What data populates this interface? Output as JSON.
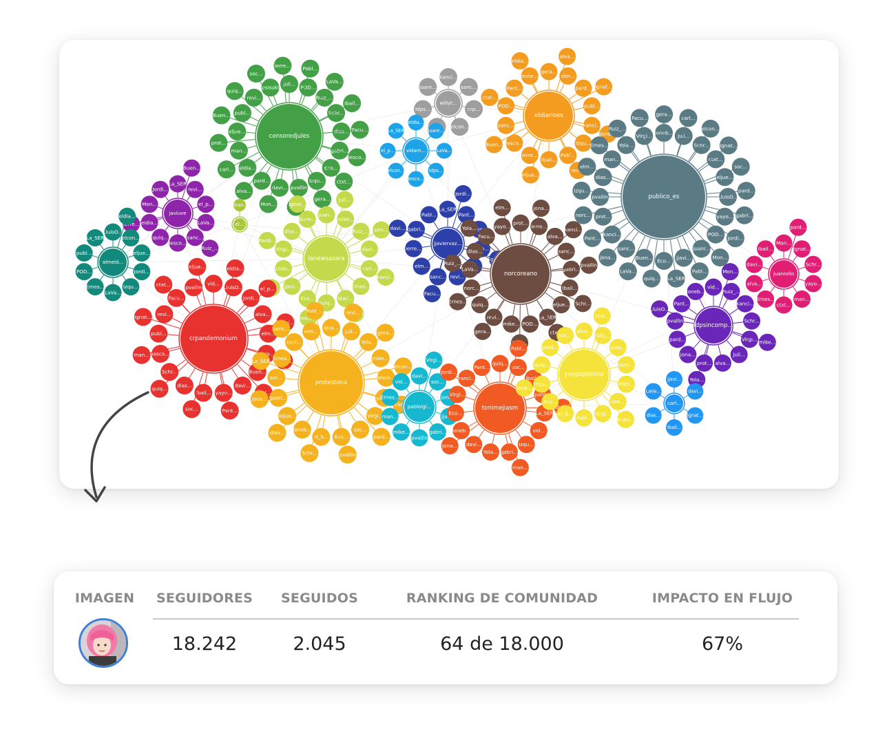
{
  "colors": {
    "green": "#43a047",
    "gray": "#9e9e9e",
    "orange": "#f39c1f",
    "purple": "#8e24aa",
    "teal": "#13897c",
    "lightgreen": "#a8c83a",
    "lime": "#c5d94c",
    "navy": "#2d3fa8",
    "brown": "#6d4c41",
    "slate": "#5b7b84",
    "magenta": "#e01e73",
    "red": "#e8322f",
    "amber": "#f5b21e",
    "cyan": "#16b8cf",
    "darkorange": "#f15a22",
    "yellow": "#f5e23a",
    "violet": "#6a26b8",
    "blue": "#2196f3",
    "skyblue": "#1fa3e8"
  },
  "communities": [
    {
      "center": "censoredjules",
      "color": "green",
      "members": [
        "Juli...",
        "POD...",
        "Ruiz_...",
        "Schr...",
        "dias...",
        "gabri...",
        "Eco...",
        "Izqu...",
        "pvallin",
        "davi...",
        "pard...",
        "eldia...",
        "man...",
        "eljue...",
        "publ...",
        "revi...",
        "psisuki",
        "Pabl...",
        "LaVa...",
        "Ibail...",
        "Facu...",
        "Iesco...",
        "ctxt...",
        "gera...",
        "Yola...",
        "Mon...",
        "alva...",
        "carl...",
        "prot...",
        "Buen...",
        "quiq...",
        "soc...",
        "ierre..."
      ]
    },
    {
      "center": "willyt...",
      "color": "gray",
      "members": [
        "kanci...",
        "sanc...",
        "crp...",
        "elcon...",
        "noco...",
        "Idps...",
        "juanr..."
      ]
    },
    {
      "center": "eldiarioes",
      "color": "orange",
      "members": [
        "gera...",
        "elm...",
        "pard...",
        "publ...",
        "kanci...",
        "Izqu...",
        "Pabl...",
        "Ibail...",
        "ierre...",
        "Iesco...",
        "sanc...",
        "POD...",
        "Pant...",
        "mike...",
        "alva...",
        "Ignat...",
        "Jordi...",
        "revi...",
        "eljue...",
        "Buen...",
        "ctxt...",
        "eldia..."
      ]
    },
    {
      "center": "publico_es",
      "color": "slate",
      "members": [
        "Joneb...",
        "Juli...",
        "Schr...",
        "ctxt...",
        "eljue...",
        "LluisO...",
        "yayo...",
        "POD...",
        "juanr...",
        "jjavi...",
        "Eco...",
        "Buen...",
        "sanc...",
        "kanci...",
        "prot...",
        "pvallin",
        "dias...",
        "man...",
        "Yola...",
        "Virgi...",
        "carl...",
        "elcon...",
        "Ignat...",
        "soc...",
        "pard...",
        "gabri...",
        "Jordi...",
        "Mon...",
        "Pabl...",
        "La_SER",
        "quiq...",
        "LaVa...",
        "jona...",
        "Pant...",
        "norc...",
        "Izqu...",
        "elm...",
        "Ernes...",
        "Ruiz_...",
        "Facu...",
        "gera..."
      ]
    },
    {
      "center": "javiuve",
      "color": "purple",
      "members": [
        "La_SER",
        "revi...",
        "el_p...",
        "LaVa...",
        "sanc...",
        "Iesco...",
        "quiq...",
        "eldia...",
        "Mon...",
        "Jordi...",
        "Buen...",
        "Ruiz_...",
        "ierre..."
      ]
    },
    {
      "center": "almeid...",
      "color": "teal",
      "members": [
        "LluisO...",
        "elcon...",
        "eljue...",
        "Jordi...",
        "Izqu...",
        "LaVa...",
        "Ernes...",
        "POD...",
        "publ...",
        "La_SER",
        "eldia..."
      ]
    },
    {
      "center": "el...",
      "color": "lightgreen",
      "members": [
        "elcon..."
      ]
    },
    {
      "center": "lanewsazara",
      "color": "lime",
      "members": [
        "juan...",
        "mike...",
        "Ruiz_...",
        "davi...",
        "carl...",
        "Ernes...",
        "Ibail...",
        "quiq...",
        "Eco...",
        "Jjavi...",
        "Lluis...",
        "Virgi...",
        "dias...",
        "Buen...",
        "Juli...",
        "elm...",
        "kanci...",
        "pvallin",
        "Iesco...",
        "eljue...",
        "Pardi...",
        "Ignat..."
      ]
    },
    {
      "center": "jjaviervaz...",
      "color": "navy",
      "members": [
        "La_SER",
        "Pant...",
        "Buen...",
        "el_p...",
        "eljue...",
        "revi...",
        "sanc...",
        "elm...",
        "ierre...",
        "gabri...",
        "Pabl...",
        "Jordi...",
        "Ignat...",
        "Facu...",
        "davi..."
      ]
    },
    {
      "center": "norcoreano",
      "color": "brown",
      "members": [
        "prot...",
        "ierre...",
        "alva...",
        "sanc...",
        "gabri...",
        "Ibail...",
        "eljue...",
        "La_SER",
        "POD...",
        "mike...",
        "revi...",
        "quiq...",
        "norc...",
        "LaVa...",
        "dias...",
        "Facu...",
        "yayo...",
        "jona...",
        "kanci...",
        "pvallin",
        "Schr...",
        "ctxt...",
        "Pabl...",
        "gera...",
        "Ernes...",
        "Ruiz_...",
        "Yola...",
        "elm..."
      ]
    },
    {
      "center": "juanrollo",
      "color": "magenta",
      "members": [
        "Mon...",
        "Ignat...",
        "Schr...",
        "yayo...",
        "man...",
        "ctxt...",
        "Ernes...",
        "alva...",
        "davi...",
        "Ibail...",
        "pard..."
      ]
    },
    {
      "center": "crpandemonium",
      "color": "red",
      "members": [
        "vid...",
        "LluisO...",
        "Jordi...",
        "alva...",
        "elm...",
        "gera...",
        "Buen...",
        "davi...",
        "yayo...",
        "Ibail...",
        "dias...",
        "Schr...",
        "Iesco...",
        "publ...",
        "revi...",
        "Facu...",
        "pvallin",
        "eldia...",
        "el_p...",
        "kanci...",
        "Yola...",
        "Pabl...",
        "Pant...",
        "soc...",
        "quiq...",
        "man...",
        "Ignat...",
        "ctxt...",
        "eljue..."
      ]
    },
    {
      "center": "protestona",
      "color": "amber",
      "members": [
        "ajus...",
        "Juli...",
        "Yola...",
        "mike...",
        "Iesco...",
        "yayo...",
        "Virgi...",
        "soc...",
        "Eco...",
        "el_b...",
        "Ioneb...",
        "eljue...",
        "gabri...",
        "soc...",
        "Ernes...",
        "cost...",
        "elm...",
        "revi...",
        "gera...",
        "elcon...",
        "carl...",
        "pard...",
        "pvallin",
        "Schr...",
        "dias...",
        "jona...",
        "La_SER",
        "sanc...",
        "Ruiz_..."
      ]
    },
    {
      "center": "pabloigl...",
      "color": "cyan",
      "members": [
        "davi...",
        "soc...",
        "jona...",
        "jjavi...",
        "gabri...",
        "pvallin",
        "mike...",
        "man...",
        "Ernes...",
        "vid...",
        "Virgi..."
      ]
    },
    {
      "center": "tonimejiasm",
      "color": "darkorange",
      "members": [
        "quiq...",
        "soc...",
        "Ibail...",
        "pard...",
        "La_SER",
        "vid...",
        "Izqu...",
        "gabri...",
        "Yola...",
        "davi...",
        "Ioneb...",
        "Eco...",
        "Virgi...",
        "kanci...",
        "Pant...",
        "Pabl...",
        "dias...",
        "man...",
        "jona...",
        "Jordi..."
      ]
    },
    {
      "center": "yoygoppelino",
      "color": "yellow",
      "members": [
        "alva...",
        "Ruiz_...",
        "quiq...",
        "sanc...",
        "POD...",
        "elm...",
        "Virgi...",
        "Pabl...",
        "el_d...",
        "Eco...",
        "Izqu...",
        "quiq...",
        "pard...",
        "soc...",
        "ctxt...",
        "Buen...",
        "jona..."
      ]
    },
    {
      "center": "ldpsincomp...",
      "color": "violet",
      "members": [
        "vid...",
        "Ruiz_...",
        "kanci...",
        "Schr...",
        "Virgi...",
        "Juli...",
        "alva...",
        "prot...",
        "jona...",
        "pard...",
        "pvallin",
        "Pant...",
        "Ioneb...",
        "Mon...",
        "mike...",
        "Yola...",
        "LluisO..."
      ]
    },
    {
      "center": "carl...",
      "color": "blue",
      "members": [
        "jjavi...",
        "davi...",
        "Ignat...",
        "Ibail...",
        "dias...",
        "LaVa..."
      ]
    },
    {
      "center": "vidam...",
      "color": "skyblue",
      "members": [
        "eldia...",
        "juanr...",
        "LaVa...",
        "Idps...",
        "Iesco...",
        "elcon...",
        "el_p...",
        "La_SER"
      ]
    }
  ],
  "stats": {
    "headers": {
      "image": "IMAGEN",
      "followers": "SEGUIDORES",
      "following": "SEGUIDOS",
      "ranking": "RANKING DE COMUNIDAD",
      "impact": "IMPACTO EN FLUJO"
    },
    "values": {
      "followers": "18.242",
      "following": "2.045",
      "ranking": "64 de 18.000",
      "impact": "67%"
    },
    "accent": "#3d7fd6"
  }
}
